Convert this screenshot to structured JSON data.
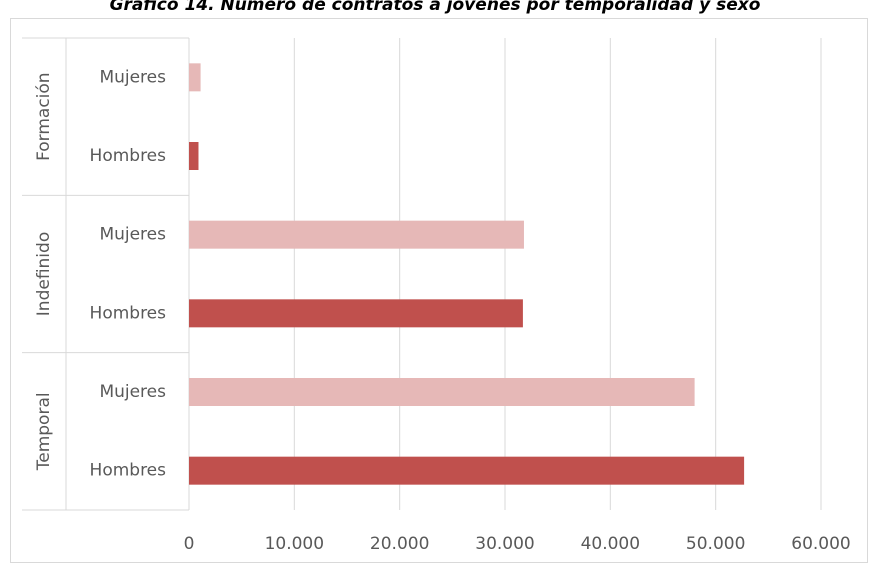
{
  "chart_data": {
    "type": "bar",
    "orientation": "horizontal",
    "title": "Gráfico 14. Número de contratos a jóvenes por temporalidad y sexo",
    "groups": [
      {
        "name": "Formación",
        "bars": [
          {
            "label": "Mujeres",
            "value": 1100
          },
          {
            "label": "Hombres",
            "value": 900
          }
        ]
      },
      {
        "name": "Indefinido",
        "bars": [
          {
            "label": "Mujeres",
            "value": 31800
          },
          {
            "label": "Hombres",
            "value": 31700
          }
        ]
      },
      {
        "name": "Temporal",
        "bars": [
          {
            "label": "Mujeres",
            "value": 48000
          },
          {
            "label": "Hombres",
            "value": 52700
          }
        ]
      }
    ],
    "x_ticks": [
      "0",
      "10.000",
      "20.000",
      "30.000",
      "40.000",
      "50.000",
      "60.000"
    ],
    "xlim": [
      0,
      60000
    ],
    "grid": true,
    "colors": {
      "Mujeres": "#e6b8b7",
      "Hombres": "#c0504d"
    }
  }
}
